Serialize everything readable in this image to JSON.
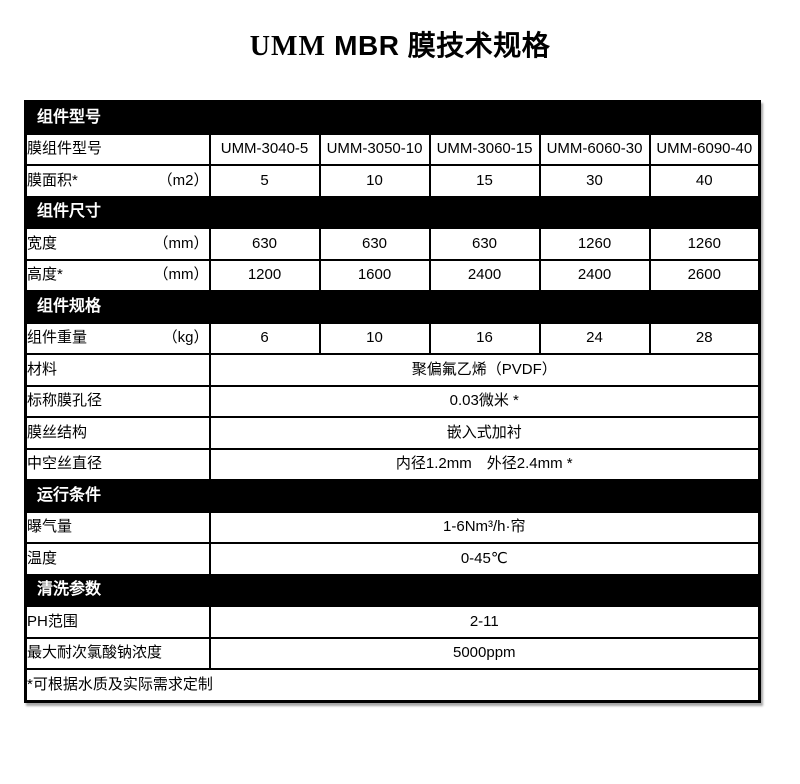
{
  "title": {
    "brand": "UMM",
    "rest": " MBR 膜技术规格"
  },
  "colors": {
    "section_header_bg": "#000000",
    "section_header_text": "#ffffff",
    "border": "#000000",
    "page_bg": "#ffffff"
  },
  "table": {
    "column_count": 6,
    "rows": [
      {
        "type": "section",
        "label": "组件型号"
      },
      {
        "type": "values",
        "label": "膜组件型号",
        "unit": "",
        "values": [
          "UMM-3040-5",
          "UMM-3050-10",
          "UMM-3060-15",
          "UMM-6060-30",
          "UMM-6090-40"
        ]
      },
      {
        "type": "values",
        "label": "膜面积*",
        "unit": "（m2）",
        "values": [
          "5",
          "10",
          "15",
          "30",
          "40"
        ]
      },
      {
        "type": "section",
        "label": "组件尺寸"
      },
      {
        "type": "values",
        "label": "宽度",
        "unit": "（mm）",
        "values": [
          "630",
          "630",
          "630",
          "1260",
          "1260"
        ]
      },
      {
        "type": "values",
        "label": "高度*",
        "unit": "（mm）",
        "values": [
          "1200",
          "1600",
          "2400",
          "2400",
          "2600"
        ]
      },
      {
        "type": "section",
        "label": "组件规格"
      },
      {
        "type": "values",
        "label": "组件重量",
        "unit": "（kg）",
        "values": [
          "6",
          "10",
          "16",
          "24",
          "28"
        ]
      },
      {
        "type": "span",
        "label": "材料",
        "value": "聚偏氟乙烯（PVDF）"
      },
      {
        "type": "span",
        "label": "标称膜孔径",
        "value": "0.03微米 *"
      },
      {
        "type": "span",
        "label": "膜丝结构",
        "value": "嵌入式加衬"
      },
      {
        "type": "span",
        "label": "中空丝直径",
        "value": "内径1.2mm　外径2.4mm *"
      },
      {
        "type": "section",
        "label": "运行条件"
      },
      {
        "type": "span",
        "label": "曝气量",
        "value": "1-6Nm³/h·帘"
      },
      {
        "type": "span",
        "label": "温度",
        "value": "0-45℃"
      },
      {
        "type": "section",
        "label": "清洗参数"
      },
      {
        "type": "span",
        "label": "PH范围",
        "value": "2-11"
      },
      {
        "type": "span",
        "label": "最大耐次氯酸钠浓度",
        "value": "5000ppm"
      },
      {
        "type": "footnote",
        "label": "*可根据水质及实际需求定制"
      }
    ]
  }
}
